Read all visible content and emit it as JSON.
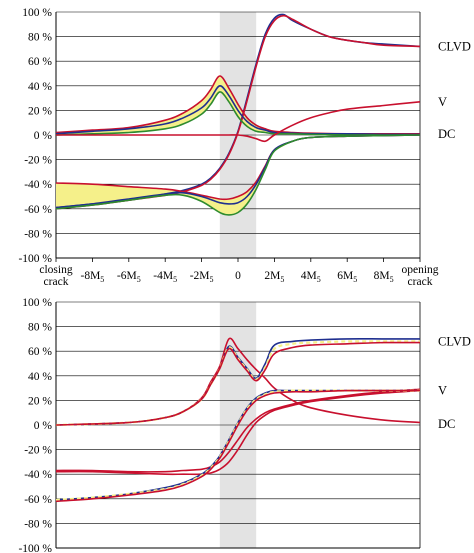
{
  "colors": {
    "red": "#c8102e",
    "blue": "#1f2f8f",
    "green": "#2e8b2e",
    "yellow_fill": "#f5f08a",
    "shade": "#e3e3e3",
    "grid": "#000000"
  },
  "chart_data": [
    {
      "type": "line",
      "panel": "top",
      "title": "",
      "xlabel": "",
      "ylabel": "",
      "xlim": [
        -10,
        10
      ],
      "ylim": [
        -100,
        100
      ],
      "grid": true,
      "shaded_x_range": [
        -1,
        1
      ],
      "y_ticks": [
        100,
        80,
        60,
        40,
        20,
        0,
        -20,
        -40,
        -60,
        -80,
        -100
      ],
      "y_tick_labels": [
        "100 %",
        "80 %",
        "60 %",
        "40 %",
        "20 %",
        "0 %",
        "-20 %",
        "-40 %",
        "-60 %",
        "-80 %",
        "-100 %"
      ],
      "x_tick_labels": [
        {
          "x": -10,
          "lines": [
            "closing",
            "crack"
          ]
        },
        {
          "x": -8,
          "text": "-8M",
          "sub": "5"
        },
        {
          "x": -6,
          "text": "-6M",
          "sub": "5"
        },
        {
          "x": -4,
          "text": "-4M",
          "sub": "5"
        },
        {
          "x": -2,
          "text": "-2M",
          "sub": "5"
        },
        {
          "x": 0,
          "text": "0"
        },
        {
          "x": 2,
          "text": "2M",
          "sub": "5"
        },
        {
          "x": 4,
          "text": "4M",
          "sub": "5"
        },
        {
          "x": 6,
          "text": "6M",
          "sub": "5"
        },
        {
          "x": 8,
          "text": "8M",
          "sub": "5"
        },
        {
          "x": 10,
          "lines": [
            "opening",
            "crack"
          ]
        }
      ],
      "annotations": [
        {
          "text": "CLVD",
          "at_y": 72
        },
        {
          "text": "V",
          "at_y": 27
        },
        {
          "text": "DC",
          "at_y": 1
        }
      ],
      "bands": [
        {
          "upper": "dc_red",
          "lower": "dc_green"
        },
        {
          "upper": "vneg_red",
          "lower": "vneg_green"
        }
      ],
      "series": [
        {
          "id": "clvd_blue",
          "color": "blue",
          "x": [
            -10,
            -8,
            -6,
            -4,
            -3,
            -2,
            -1.5,
            -1,
            -0.5,
            0,
            0.5,
            1,
            1.5,
            2,
            2.5,
            3,
            4,
            5,
            6,
            7,
            8,
            10
          ],
          "y": [
            -59,
            -56,
            -53,
            -48,
            -45,
            -40,
            -35,
            -27,
            -15,
            3,
            30,
            58,
            82,
            95,
            98,
            93,
            86,
            80,
            77,
            75,
            74,
            72
          ]
        },
        {
          "id": "clvd_red",
          "color": "red",
          "x": [
            -10,
            -8,
            -6,
            -4,
            -3,
            -2,
            -1.5,
            -1,
            -0.5,
            0,
            0.5,
            1,
            1.5,
            2,
            2.5,
            3,
            4,
            5,
            6,
            7,
            8,
            10
          ],
          "y": [
            -60,
            -57,
            -53,
            -49,
            -46,
            -41,
            -36,
            -28,
            -16,
            2,
            28,
            56,
            80,
            93,
            97,
            94,
            86,
            80,
            77,
            75,
            73,
            72
          ]
        },
        {
          "id": "dc_red",
          "color": "red",
          "x": [
            -10,
            -8,
            -6,
            -4,
            -3,
            -2,
            -1.5,
            -1,
            -0.5,
            0,
            0.5,
            1,
            1.5,
            2,
            3,
            4,
            6,
            8,
            10
          ],
          "y": [
            2,
            4,
            6,
            12,
            18,
            28,
            37,
            48,
            38,
            25,
            14,
            8,
            5,
            3,
            2,
            1.5,
            1,
            1,
            1
          ]
        },
        {
          "id": "dc_blue",
          "color": "blue",
          "x": [
            -10,
            -8,
            -6,
            -4,
            -3,
            -2,
            -1.5,
            -1,
            -0.5,
            0,
            0.5,
            1,
            1.5,
            2,
            3,
            4,
            6,
            8,
            10
          ],
          "y": [
            1,
            3,
            5,
            9,
            14,
            22,
            30,
            40,
            32,
            20,
            11,
            6,
            4,
            2,
            1.5,
            1,
            1,
            0.5,
            0.5
          ]
        },
        {
          "id": "dc_green",
          "color": "green",
          "x": [
            -10,
            -8,
            -6,
            -4,
            -3,
            -2,
            -1.5,
            -1,
            -0.5,
            0,
            0.5,
            1,
            1.5,
            2,
            3,
            4,
            6,
            8,
            10
          ],
          "y": [
            0,
            1,
            2,
            5,
            9,
            17,
            25,
            35,
            27,
            15,
            7,
            3,
            2,
            1,
            1,
            0.5,
            0,
            0,
            0
          ]
        },
        {
          "id": "vpos_red",
          "color": "red",
          "x": [
            -10,
            -4,
            -2,
            -1,
            -0.5,
            0,
            0.5,
            1,
            1.5,
            2,
            3,
            4,
            5,
            6,
            8,
            10
          ],
          "y": [
            0,
            0,
            0,
            0,
            0,
            0,
            -1,
            -3,
            -5,
            0,
            8,
            14,
            18,
            21,
            24,
            27
          ]
        },
        {
          "id": "vneg_red",
          "color": "red",
          "x": [
            -10,
            -8,
            -6,
            -4,
            -3,
            -2,
            -1,
            -0.5,
            0,
            0.5,
            1,
            1.5,
            2,
            3,
            4,
            6,
            8,
            10
          ],
          "y": [
            -39,
            -40,
            -42,
            -44,
            -46,
            -49,
            -52,
            -52,
            -50,
            -46,
            -38,
            -25,
            -12,
            -5,
            -2,
            -1,
            -0.5,
            0
          ]
        },
        {
          "id": "vneg_blue",
          "color": "blue",
          "x": [
            -10,
            -8,
            -6,
            -4,
            -3,
            -2,
            -1,
            -0.5,
            0,
            0.5,
            1,
            1.5,
            2,
            3,
            4,
            6,
            8,
            10
          ],
          "y": [
            -59,
            -56,
            -52,
            -48,
            -47,
            -50,
            -55,
            -56,
            -55,
            -50,
            -40,
            -26,
            -12,
            -5,
            -2,
            -1,
            -0.5,
            0
          ]
        },
        {
          "id": "vneg_green",
          "color": "green",
          "x": [
            -10,
            -8,
            -6,
            -4,
            -3,
            -2,
            -1,
            -0.5,
            0,
            0.5,
            1,
            1.5,
            2,
            3,
            4,
            6,
            8,
            10
          ],
          "y": [
            -60,
            -57,
            -53,
            -49,
            -49,
            -54,
            -63,
            -65,
            -63,
            -56,
            -44,
            -28,
            -13,
            -5,
            -2,
            -1,
            -0.5,
            0
          ]
        }
      ]
    },
    {
      "type": "line",
      "panel": "bottom",
      "title": "",
      "xlabel": "",
      "ylabel": "",
      "xlim": [
        -10,
        10
      ],
      "ylim": [
        -100,
        100
      ],
      "grid": true,
      "shaded_x_range": [
        -1,
        1
      ],
      "y_ticks": [
        100,
        80,
        60,
        40,
        20,
        0,
        -20,
        -40,
        -60,
        -80,
        -100
      ],
      "y_tick_labels": [
        "100 %",
        "80 %",
        "60 %",
        "40 %",
        "20 %",
        "0 %",
        "-20 %",
        "-40 %",
        "-60 %",
        "-80 %",
        "-100 %"
      ],
      "annotations": [
        {
          "text": "CLVD",
          "at_y": 68
        },
        {
          "text": "V",
          "at_y": 28
        },
        {
          "text": "DC",
          "at_y": 1
        }
      ],
      "series": [
        {
          "id": "dc_red",
          "color": "red",
          "x": [
            -10,
            -6,
            -4,
            -3,
            -2,
            -1.5,
            -1,
            -0.5,
            0,
            0.5,
            1,
            1.5,
            2,
            3,
            4,
            6,
            8,
            10
          ],
          "y": [
            0,
            2,
            6,
            11,
            22,
            35,
            48,
            70,
            62,
            53,
            45,
            38,
            30,
            20,
            14,
            8,
            4,
            2
          ]
        },
        {
          "id": "clvd_blue_pos",
          "color": "blue",
          "x": [
            -10,
            -6,
            -4,
            -3,
            -2,
            -1.5,
            -1,
            -0.5,
            0,
            0.5,
            1,
            1.5,
            2,
            3,
            4,
            6,
            8,
            10
          ],
          "y": [
            0,
            2,
            6,
            11,
            21,
            33,
            46,
            64,
            55,
            46,
            38,
            50,
            65,
            68,
            69,
            70,
            70,
            70
          ]
        },
        {
          "id": "clvd_yellow_pos",
          "color": "yellow_fill",
          "x": [
            -10,
            -6,
            -4,
            -3,
            -2,
            -1.5,
            -1,
            -0.5,
            0,
            0.5,
            1,
            1.5,
            2,
            3,
            4,
            6,
            8,
            10
          ],
          "y": [
            0,
            2,
            6,
            11,
            21,
            33,
            46,
            63,
            54,
            45,
            37,
            47,
            62,
            66,
            67,
            68,
            68,
            68
          ]
        },
        {
          "id": "clvd_red_pos",
          "color": "red",
          "x": [
            -10,
            -6,
            -4,
            -3,
            -2,
            -1.5,
            -1,
            -0.5,
            0,
            0.5,
            1,
            1.5,
            2,
            3,
            4,
            6,
            8,
            10
          ],
          "y": [
            0,
            2,
            6,
            11,
            21,
            33,
            46,
            62,
            53,
            44,
            36,
            45,
            58,
            63,
            65,
            66,
            67,
            67
          ]
        },
        {
          "id": "v_red_upper",
          "color": "red",
          "x": [
            -10,
            -8,
            -6,
            -4,
            -3,
            -2,
            -1.5,
            -1,
            -0.5,
            0,
            0.5,
            1,
            1.5,
            2,
            3,
            4,
            6,
            8,
            10
          ],
          "y": [
            -37,
            -37,
            -38,
            -38,
            -37,
            -36,
            -34,
            -30,
            -22,
            -12,
            -2,
            5,
            10,
            13,
            17,
            20,
            24,
            27,
            29
          ]
        },
        {
          "id": "v_red_lower",
          "color": "red",
          "x": [
            -10,
            -8,
            -6,
            -4,
            -3,
            -2,
            -1.5,
            -1,
            -0.5,
            0,
            0.5,
            1,
            1.5,
            2,
            3,
            4,
            6,
            8,
            10
          ],
          "y": [
            -38,
            -38,
            -39,
            -40,
            -40,
            -40,
            -39,
            -36,
            -30,
            -20,
            -8,
            2,
            8,
            12,
            16,
            19,
            23,
            26,
            28
          ]
        },
        {
          "id": "clvd_blue_neg",
          "color": "blue",
          "x": [
            -10,
            -8,
            -6,
            -4,
            -3,
            -2,
            -1.5,
            -1,
            -0.5,
            0,
            0.5,
            1,
            1.5,
            2,
            3,
            4,
            6,
            8,
            10
          ],
          "y": [
            -61,
            -59,
            -56,
            -51,
            -47,
            -40,
            -34,
            -25,
            -12,
            2,
            14,
            22,
            26,
            28,
            28,
            28,
            28,
            28,
            28
          ]
        },
        {
          "id": "clvd_yellow_neg",
          "color": "yellow_fill",
          "x": [
            -10,
            -8,
            -6,
            -4,
            -3,
            -2,
            -1.5,
            -1,
            -0.5,
            0,
            0.5,
            1,
            1.5,
            2,
            3,
            4,
            6,
            8,
            10
          ],
          "y": [
            -61,
            -59,
            -56,
            -52,
            -48,
            -41,
            -35,
            -26,
            -13,
            1,
            13,
            21,
            25,
            27,
            28,
            28,
            28,
            28,
            28
          ]
        },
        {
          "id": "clvd_red_neg",
          "color": "red",
          "x": [
            -10,
            -8,
            -6,
            -4,
            -3,
            -2,
            -1.5,
            -1,
            -0.5,
            0,
            0.5,
            1,
            1.5,
            2,
            3,
            4,
            6,
            8,
            10
          ],
          "y": [
            -62,
            -60,
            -57,
            -53,
            -49,
            -42,
            -36,
            -27,
            -14,
            0,
            12,
            20,
            24,
            26,
            27,
            27,
            28,
            28,
            28
          ]
        }
      ]
    }
  ]
}
